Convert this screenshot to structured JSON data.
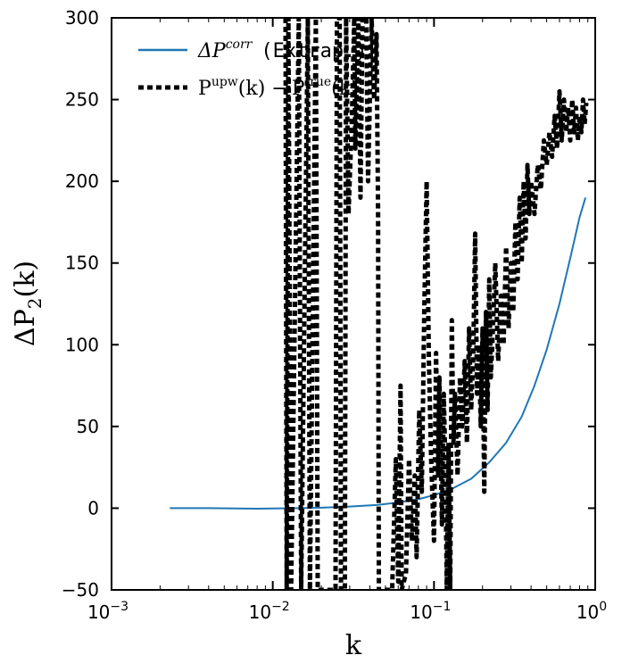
{
  "chart_data": {
    "type": "line",
    "xscale": "log",
    "xlim": [
      0.001,
      1.0
    ],
    "ylim": [
      -50,
      300
    ],
    "xlabel": "k",
    "ylabel": "ΔP2(k)",
    "grid": false,
    "legend_position": "top-left",
    "x_ticks": [
      {
        "value": 0.001,
        "mantissa": "10",
        "exp": "−3"
      },
      {
        "value": 0.01,
        "mantissa": "10",
        "exp": "−2"
      },
      {
        "value": 0.1,
        "mantissa": "10",
        "exp": "−1"
      },
      {
        "value": 1.0,
        "mantissa": "10",
        "exp": "0"
      }
    ],
    "y_ticks": [
      {
        "value": -50,
        "label": "−50"
      },
      {
        "value": 0,
        "label": "0"
      },
      {
        "value": 50,
        "label": "50"
      },
      {
        "value": 100,
        "label": "100"
      },
      {
        "value": 150,
        "label": "150"
      },
      {
        "value": 200,
        "label": "200"
      },
      {
        "value": 250,
        "label": "250"
      },
      {
        "value": 300,
        "label": "300"
      }
    ],
    "series": [
      {
        "name": "ΔP^corr (Extrap.)",
        "legend_text": "(Extrap.)",
        "color": "#1f77b4",
        "style": "solid",
        "points": [
          [
            0.0023,
            0.0
          ],
          [
            0.004,
            0.0
          ],
          [
            0.006,
            -0.2
          ],
          [
            0.008,
            -0.3
          ],
          [
            0.01,
            -0.2
          ],
          [
            0.015,
            0.0
          ],
          [
            0.02,
            0.3
          ],
          [
            0.03,
            1.0
          ],
          [
            0.045,
            2.0
          ],
          [
            0.06,
            3.5
          ],
          [
            0.08,
            5.5
          ],
          [
            0.1,
            8.0
          ],
          [
            0.13,
            12.0
          ],
          [
            0.17,
            18.0
          ],
          [
            0.22,
            28.0
          ],
          [
            0.28,
            40.0
          ],
          [
            0.35,
            56.0
          ],
          [
            0.42,
            75.0
          ],
          [
            0.5,
            97.0
          ],
          [
            0.6,
            125.0
          ],
          [
            0.7,
            153.0
          ],
          [
            0.8,
            178.0
          ],
          [
            0.87,
            190.0
          ]
        ]
      },
      {
        "name": "P^upw(k) − P^true(k)",
        "legend_text": "(k) −",
        "color": "#000000",
        "style": "dashed",
        "points": [
          [
            0.012,
            300
          ],
          [
            0.0122,
            -50
          ],
          [
            0.0125,
            300
          ],
          [
            0.013,
            -50
          ],
          [
            0.0145,
            300
          ],
          [
            0.015,
            -50
          ],
          [
            0.0165,
            300
          ],
          [
            0.017,
            -50
          ],
          [
            0.0185,
            300
          ],
          [
            0.019,
            -50
          ],
          [
            0.0245,
            -50
          ],
          [
            0.025,
            300
          ],
          [
            0.026,
            300
          ],
          [
            0.0265,
            -50
          ],
          [
            0.028,
            -50
          ],
          [
            0.0285,
            300
          ],
          [
            0.0295,
            180
          ],
          [
            0.031,
            240
          ],
          [
            0.032,
            300
          ],
          [
            0.0325,
            220
          ],
          [
            0.034,
            300
          ],
          [
            0.035,
            190
          ],
          [
            0.036,
            300
          ],
          [
            0.038,
            300
          ],
          [
            0.039,
            200
          ],
          [
            0.041,
            300
          ],
          [
            0.0425,
            250
          ],
          [
            0.044,
            290
          ],
          [
            0.045,
            180
          ],
          [
            0.0455,
            -50
          ],
          [
            0.055,
            -50
          ],
          [
            0.058,
            30
          ],
          [
            0.06,
            -45
          ],
          [
            0.062,
            75
          ],
          [
            0.063,
            -50
          ],
          [
            0.067,
            -40
          ],
          [
            0.07,
            30
          ],
          [
            0.073,
            -20
          ],
          [
            0.076,
            20
          ],
          [
            0.078,
            -30
          ],
          [
            0.081,
            60
          ],
          [
            0.084,
            10
          ],
          [
            0.087,
            120
          ],
          [
            0.09,
            200
          ],
          [
            0.093,
            90
          ],
          [
            0.096,
            30
          ],
          [
            0.1,
            -20
          ],
          [
            0.103,
            95
          ],
          [
            0.106,
            20
          ],
          [
            0.108,
            80
          ],
          [
            0.112,
            -10
          ],
          [
            0.115,
            70
          ],
          [
            0.118,
            20
          ],
          [
            0.12,
            -50
          ],
          [
            0.123,
            40
          ],
          [
            0.126,
            -50
          ],
          [
            0.129,
            115
          ],
          [
            0.132,
            40
          ],
          [
            0.135,
            70
          ],
          [
            0.14,
            20
          ],
          [
            0.145,
            80
          ],
          [
            0.15,
            50
          ],
          [
            0.155,
            90
          ],
          [
            0.16,
            40
          ],
          [
            0.165,
            110
          ],
          [
            0.17,
            60
          ],
          [
            0.175,
            90
          ],
          [
            0.18,
            168
          ],
          [
            0.185,
            70
          ],
          [
            0.19,
            100
          ],
          [
            0.195,
            50
          ],
          [
            0.2,
            110
          ],
          [
            0.205,
            10
          ],
          [
            0.21,
            120
          ],
          [
            0.215,
            60
          ],
          [
            0.22,
            140
          ],
          [
            0.225,
            80
          ],
          [
            0.23,
            100
          ],
          [
            0.24,
            150
          ],
          [
            0.25,
            90
          ],
          [
            0.26,
            130
          ],
          [
            0.27,
            100
          ],
          [
            0.28,
            160
          ],
          [
            0.29,
            110
          ],
          [
            0.3,
            150
          ],
          [
            0.31,
            120
          ],
          [
            0.32,
            175
          ],
          [
            0.33,
            140
          ],
          [
            0.34,
            190
          ],
          [
            0.35,
            150
          ],
          [
            0.36,
            200
          ],
          [
            0.37,
            165
          ],
          [
            0.38,
            210
          ],
          [
            0.39,
            180
          ],
          [
            0.4,
            200
          ],
          [
            0.42,
            180
          ],
          [
            0.44,
            210
          ],
          [
            0.46,
            195
          ],
          [
            0.48,
            225
          ],
          [
            0.5,
            210
          ],
          [
            0.52,
            230
          ],
          [
            0.54,
            215
          ],
          [
            0.56,
            240
          ],
          [
            0.58,
            220
          ],
          [
            0.6,
            255
          ],
          [
            0.62,
            225
          ],
          [
            0.64,
            250
          ],
          [
            0.66,
            230
          ],
          [
            0.68,
            245
          ],
          [
            0.7,
            225
          ],
          [
            0.72,
            250
          ],
          [
            0.74,
            230
          ],
          [
            0.76,
            245
          ],
          [
            0.78,
            225
          ],
          [
            0.8,
            240
          ],
          [
            0.82,
            230
          ],
          [
            0.84,
            250
          ],
          [
            0.86,
            235
          ],
          [
            0.88,
            248
          ]
        ]
      }
    ]
  }
}
